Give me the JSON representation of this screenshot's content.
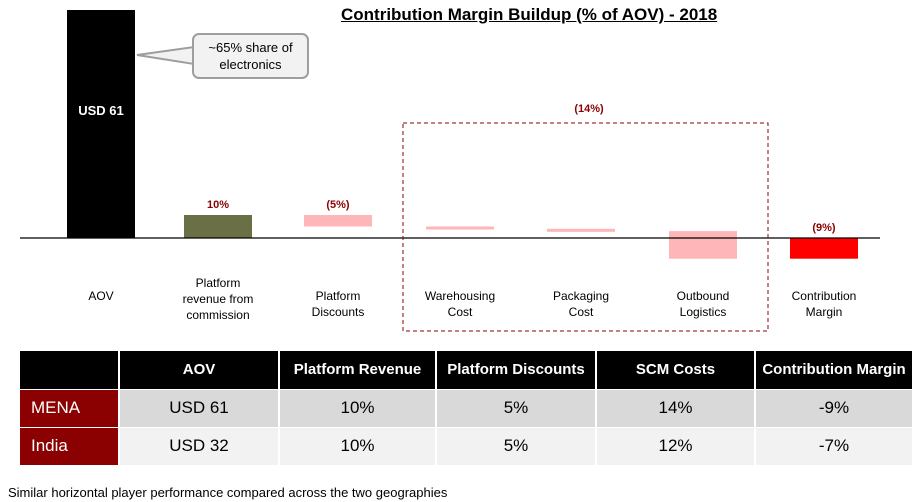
{
  "chart_data": {
    "type": "bar",
    "title": "Contribution Margin Buildup (% of AOV) - 2018",
    "categories": [
      "AOV",
      "Platform revenue  from commission",
      "Platform Discounts",
      "Warehousing Cost",
      "Packaging Cost",
      "Outbound Logistics",
      "Contribution Margin"
    ],
    "start": [
      0,
      0,
      10,
      5,
      4,
      3,
      0
    ],
    "end": [
      100,
      10,
      5,
      4,
      3,
      -9,
      -9
    ],
    "data_labels": [
      "USD 61",
      "10%",
      "(5%)",
      "",
      "",
      "",
      "(9%)"
    ],
    "group_label": "(14%)",
    "colors": {
      "AOV": "#000000",
      "revenue": "#6b6f45",
      "cost": "#ffb6b9",
      "margin": "#ff0000",
      "label_red": "#8b0000"
    }
  },
  "callout": {
    "text": "~65% share of electronics"
  },
  "table": {
    "headers": [
      "",
      "AOV",
      "Platform Revenue",
      "Platform Discounts",
      "SCM Costs",
      "Contribution Margin"
    ],
    "rows": [
      [
        "MENA",
        "USD 61",
        "10%",
        "5%",
        "14%",
        "-9%"
      ],
      [
        "India",
        "USD 32",
        "10%",
        "5%",
        "12%",
        "-7%"
      ]
    ]
  },
  "footnote": "Similar horizontal  player performance compared across the two geographies"
}
